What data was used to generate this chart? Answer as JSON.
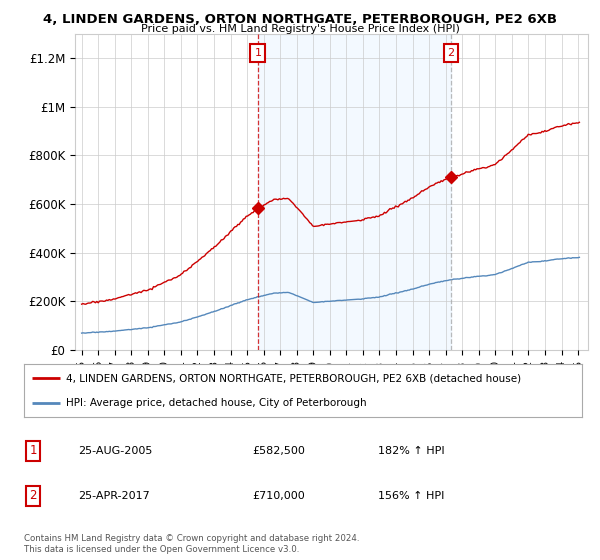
{
  "title1": "4, LINDEN GARDENS, ORTON NORTHGATE, PETERBOROUGH, PE2 6XB",
  "title2": "Price paid vs. HM Land Registry's House Price Index (HPI)",
  "legend_line1": "4, LINDEN GARDENS, ORTON NORTHGATE, PETERBOROUGH, PE2 6XB (detached house)",
  "legend_line2": "HPI: Average price, detached house, City of Peterborough",
  "sale1_date": "25-AUG-2005",
  "sale1_price": "£582,500",
  "sale1_hpi": "182% ↑ HPI",
  "sale2_date": "25-APR-2017",
  "sale2_price": "£710,000",
  "sale2_hpi": "156% ↑ HPI",
  "footnote": "Contains HM Land Registry data © Crown copyright and database right 2024.\nThis data is licensed under the Open Government Licence v3.0.",
  "ylim": [
    0,
    1300000
  ],
  "yticks": [
    0,
    200000,
    400000,
    600000,
    800000,
    1000000,
    1200000
  ],
  "ytick_labels": [
    "£0",
    "£200K",
    "£400K",
    "£600K",
    "£800K",
    "£1M",
    "£1.2M"
  ],
  "red_color": "#cc0000",
  "blue_color": "#5588bb",
  "shade_color": "#ddeeff",
  "background_color": "#ffffff",
  "grid_color": "#cccccc",
  "sale1_year": 2005.65,
  "sale1_value": 582500,
  "sale2_year": 2017.32,
  "sale2_value": 710000
}
